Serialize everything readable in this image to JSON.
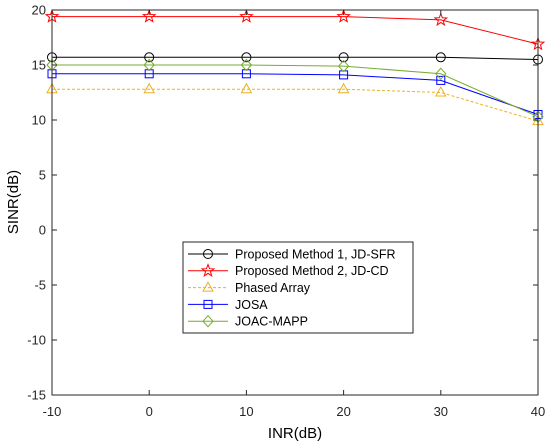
{
  "chart_data": {
    "type": "line",
    "xlabel": "INR(dB)",
    "ylabel": "SINR(dB)",
    "x": [
      -10,
      0,
      10,
      20,
      30,
      40
    ],
    "xlim": [
      -10,
      40
    ],
    "ylim": [
      -15,
      20
    ],
    "xticks": [
      -10,
      0,
      10,
      20,
      30,
      40
    ],
    "yticks": [
      -15,
      -10,
      -5,
      0,
      5,
      10,
      15,
      20
    ],
    "grid": false,
    "legend_position": "center",
    "series": [
      {
        "name": "Proposed Method 1, JD-SFR",
        "color": "#000000",
        "marker": "circle",
        "line_style": "solid",
        "values": [
          15.7,
          15.7,
          15.7,
          15.7,
          15.7,
          15.5
        ]
      },
      {
        "name": "Proposed Method 2, JD-CD",
        "color": "#FF0000",
        "marker": "pentagram",
        "line_style": "solid",
        "values": [
          19.4,
          19.4,
          19.4,
          19.4,
          19.1,
          16.9
        ]
      },
      {
        "name": "Phased Array",
        "color": "#EDB120",
        "marker": "triangle",
        "line_style": "dashed",
        "values": [
          12.8,
          12.8,
          12.8,
          12.8,
          12.5,
          9.9
        ]
      },
      {
        "name": "JOSA",
        "color": "#0000FF",
        "marker": "square",
        "line_style": "solid",
        "values": [
          14.2,
          14.2,
          14.2,
          14.1,
          13.6,
          10.5
        ]
      },
      {
        "name": "JOAC-MAPP",
        "color": "#77AC30",
        "marker": "diamond",
        "line_style": "solid",
        "values": [
          15.0,
          15.0,
          15.0,
          14.9,
          14.2,
          10.3
        ]
      }
    ]
  }
}
